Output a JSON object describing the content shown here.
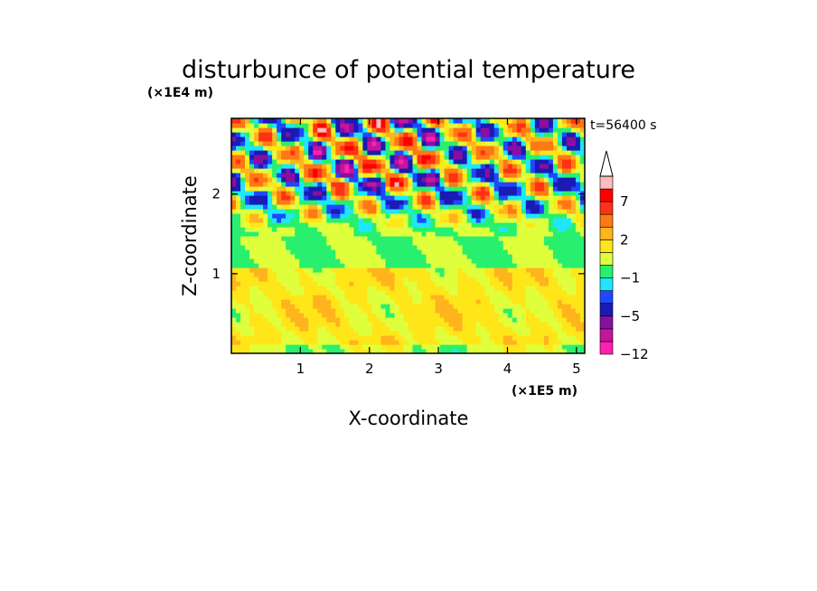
{
  "chart_data": {
    "type": "heatmap",
    "title": "disturbunce of potential temperature",
    "time_label": "t=56400 s",
    "xlabel": "X-coordinate",
    "ylabel": "Z-coordinate",
    "x_scale_label": "(×1E5 m)",
    "y_scale_label": "(×1E4 m)",
    "xlim": [
      0,
      5.12
    ],
    "ylim": [
      0,
      2.95
    ],
    "x_ticks": [
      1,
      2,
      3,
      4,
      5
    ],
    "x_tick_labels": [
      "1",
      "2",
      "3",
      "4",
      "5"
    ],
    "y_ticks": [
      1,
      2
    ],
    "y_tick_labels": [
      "1",
      "2"
    ],
    "colorbar": {
      "levels": [
        -12,
        -9,
        -7,
        -5,
        -3,
        -2,
        -1,
        0,
        1,
        2,
        3,
        5,
        7,
        9,
        12
      ],
      "colors": [
        "#ff1fb0",
        "#c4159e",
        "#8a0fa0",
        "#1a1ab4",
        "#1f48ff",
        "#1fe6ff",
        "#28f06e",
        "#dfff3c",
        "#ffe619",
        "#ffb41e",
        "#ff7814",
        "#ff3214",
        "#ff0000",
        "#ffbcbc"
      ],
      "extend": "max",
      "labels": [
        {
          "value": -12,
          "text": "−12"
        },
        {
          "value": -5,
          "text": "−5"
        },
        {
          "value": -1,
          "text": "−1"
        },
        {
          "value": 2,
          "text": "2"
        },
        {
          "value": 7,
          "text": "7"
        }
      ]
    }
  }
}
